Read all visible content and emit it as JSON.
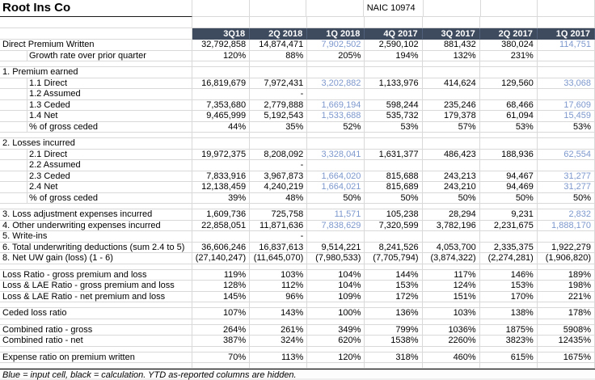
{
  "title": "Root Ins Co",
  "naic_label": "NAIC 10974",
  "footnote": "Blue = input cell, black = calculation.  YTD as-reported columns are hidden.",
  "colors": {
    "header_bg": "#3e4b5e",
    "header_text": "#ffffff",
    "input_blue": "#7d98cd",
    "calculation_black": "#000000",
    "gridline": "#d9d9d9"
  },
  "columns": [
    "3Q18",
    "2Q 2018",
    "1Q 2018",
    "4Q 2017",
    "3Q 2017",
    "2Q 2017",
    "1Q 2017"
  ],
  "rows": [
    {
      "kind": "data",
      "label": "Direct Premium Written",
      "indent": false,
      "blue": [
        2,
        6
      ],
      "values": [
        "32,792,858",
        "14,874,471",
        "7,902,502",
        "2,590,102",
        "881,432",
        "380,024",
        "114,751"
      ]
    },
    {
      "kind": "data",
      "label": "Growth rate over prior quarter",
      "indent": true,
      "values": [
        "120%",
        "88%",
        "205%",
        "194%",
        "132%",
        "231%",
        ""
      ]
    },
    {
      "kind": "spacer",
      "label": "",
      "values": [
        "",
        "",
        "",
        "",
        "",
        "",
        ""
      ]
    },
    {
      "kind": "data",
      "label": "1. Premium earned",
      "indent": false,
      "values": [
        "",
        "",
        "",
        "",
        "",
        "",
        ""
      ]
    },
    {
      "kind": "data",
      "label": "1.1 Direct",
      "indent": true,
      "blue": [
        2,
        6
      ],
      "values": [
        "16,819,679",
        "7,972,431",
        "3,202,882",
        "1,133,976",
        "414,624",
        "129,560",
        "33,068"
      ]
    },
    {
      "kind": "data",
      "label": "1.2 Assumed",
      "indent": true,
      "values": [
        "",
        "-",
        "",
        "",
        "",
        "",
        ""
      ]
    },
    {
      "kind": "data",
      "label": "1.3 Ceded",
      "indent": true,
      "blue": [
        2,
        6
      ],
      "values": [
        "7,353,680",
        "2,779,888",
        "1,669,194",
        "598,244",
        "235,246",
        "68,466",
        "17,609"
      ]
    },
    {
      "kind": "data",
      "label": "1.4 Net",
      "indent": true,
      "blue": [
        2,
        6
      ],
      "values": [
        "9,465,999",
        "5,192,543",
        "1,533,688",
        "535,732",
        "179,378",
        "61,094",
        "15,459"
      ]
    },
    {
      "kind": "data",
      "label": "% of gross ceded",
      "indent": true,
      "values": [
        "44%",
        "35%",
        "52%",
        "53%",
        "57%",
        "53%",
        "53%"
      ]
    },
    {
      "kind": "spacer",
      "label": "",
      "values": [
        "",
        "",
        "",
        "",
        "",
        "",
        ""
      ]
    },
    {
      "kind": "data",
      "label": "2. Losses incurred",
      "indent": false,
      "values": [
        "",
        "",
        "",
        "",
        "",
        "",
        ""
      ]
    },
    {
      "kind": "data",
      "label": "2.1 Direct",
      "indent": true,
      "blue": [
        2,
        6
      ],
      "values": [
        "19,972,375",
        "8,208,092",
        "3,328,041",
        "1,631,377",
        "486,423",
        "188,936",
        "62,554"
      ]
    },
    {
      "kind": "data",
      "label": "2.2 Assumed",
      "indent": true,
      "values": [
        "",
        "-",
        "",
        "",
        "",
        "",
        ""
      ]
    },
    {
      "kind": "data",
      "label": "2.3 Ceded",
      "indent": true,
      "blue": [
        2,
        6
      ],
      "values": [
        "7,833,916",
        "3,967,873",
        "1,664,020",
        "815,688",
        "243,213",
        "94,467",
        "31,277"
      ]
    },
    {
      "kind": "data",
      "label": "2.4 Net",
      "indent": true,
      "blue": [
        2,
        6
      ],
      "values": [
        "12,138,459",
        "4,240,219",
        "1,664,021",
        "815,689",
        "243,210",
        "94,469",
        "31,277"
      ]
    },
    {
      "kind": "data",
      "label": "% of gross ceded",
      "indent": true,
      "values": [
        "39%",
        "48%",
        "50%",
        "50%",
        "50%",
        "50%",
        "50%"
      ]
    },
    {
      "kind": "spacer",
      "label": "",
      "values": [
        "",
        "",
        "",
        "",
        "",
        "",
        ""
      ]
    },
    {
      "kind": "data",
      "label": "3. Loss adjustment expenses incurred",
      "indent": false,
      "blue": [
        2,
        6
      ],
      "values": [
        "1,609,736",
        "725,758",
        "11,571",
        "105,238",
        "28,294",
        "9,231",
        "2,832"
      ]
    },
    {
      "kind": "data",
      "label": "4. Other underwriting expenses incurred",
      "indent": false,
      "blue": [
        2,
        6
      ],
      "values": [
        "22,858,051",
        "11,871,636",
        "7,838,629",
        "7,320,599",
        "3,782,196",
        "2,231,675",
        "1,888,170"
      ]
    },
    {
      "kind": "data",
      "label": "5. Write-ins",
      "indent": false,
      "values": [
        "",
        "-",
        "",
        "",
        "",
        "",
        ""
      ]
    },
    {
      "kind": "data",
      "label": "6. Total underwriting deductions (sum 2.4 to 5)",
      "indent": false,
      "values": [
        "36,606,246",
        "16,837,613",
        "9,514,221",
        "8,241,526",
        "4,053,700",
        "2,335,375",
        "1,922,279"
      ]
    },
    {
      "kind": "data",
      "label": "8. Net UW gain (loss) (1 - 6)",
      "indent": false,
      "values": [
        "(27,140,247)",
        "(11,645,070)",
        "(7,980,533)",
        "(7,705,794)",
        "(3,874,322)",
        "(2,274,281)",
        "(1,906,820)"
      ]
    },
    {
      "kind": "spacer",
      "label": "",
      "values": [
        "",
        "",
        "",
        "",
        "",
        "",
        ""
      ]
    },
    {
      "kind": "data",
      "label": "Loss Ratio - gross premium and loss",
      "indent": false,
      "values": [
        "119%",
        "103%",
        "104%",
        "144%",
        "117%",
        "146%",
        "189%"
      ]
    },
    {
      "kind": "data",
      "label": "Loss & LAE Ratio - gross premium and loss",
      "indent": false,
      "values": [
        "128%",
        "112%",
        "104%",
        "153%",
        "124%",
        "153%",
        "198%"
      ]
    },
    {
      "kind": "data",
      "label": "Loss & LAE Ratio - net premium and loss",
      "indent": false,
      "values": [
        "145%",
        "96%",
        "109%",
        "172%",
        "151%",
        "170%",
        "221%"
      ]
    },
    {
      "kind": "spacer",
      "label": "",
      "values": [
        "",
        "",
        "",
        "",
        "",
        "",
        ""
      ]
    },
    {
      "kind": "data",
      "label": "Ceded loss ratio",
      "indent": false,
      "values": [
        "107%",
        "143%",
        "100%",
        "136%",
        "103%",
        "138%",
        "178%"
      ]
    },
    {
      "kind": "spacer",
      "label": "",
      "values": [
        "",
        "",
        "",
        "",
        "",
        "",
        ""
      ]
    },
    {
      "kind": "data",
      "label": "Combined ratio - gross",
      "indent": false,
      "values": [
        "264%",
        "261%",
        "349%",
        "799%",
        "1036%",
        "1875%",
        "5908%"
      ]
    },
    {
      "kind": "data",
      "label": "Combined ratio - net",
      "indent": false,
      "values": [
        "387%",
        "324%",
        "620%",
        "1538%",
        "2260%",
        "3823%",
        "12435%"
      ]
    },
    {
      "kind": "spacer",
      "label": "",
      "values": [
        "",
        "",
        "",
        "",
        "",
        "",
        ""
      ]
    },
    {
      "kind": "data",
      "label": "Expense ratio on premium written",
      "indent": false,
      "values": [
        "70%",
        "113%",
        "120%",
        "318%",
        "460%",
        "615%",
        "1675%"
      ]
    },
    {
      "kind": "spacer",
      "label": "",
      "values": [
        "",
        "",
        "",
        "",
        "",
        "",
        ""
      ]
    }
  ]
}
